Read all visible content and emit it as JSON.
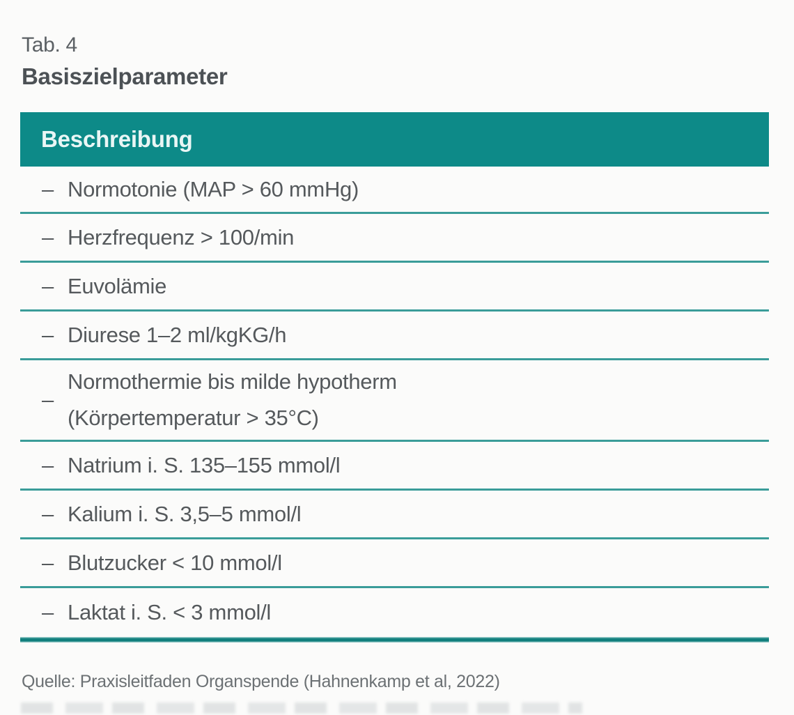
{
  "caption": {
    "label": "Tab. 4",
    "title": "Basiszielparameter"
  },
  "table": {
    "header": "Beschreibung",
    "bullet": "–",
    "rows": [
      {
        "lines": [
          "Normotonie (MAP > 60 mmHg)"
        ]
      },
      {
        "lines": [
          "Herzfrequenz > 100/min"
        ]
      },
      {
        "lines": [
          "Euvolämie"
        ]
      },
      {
        "lines": [
          "Diurese 1–2 ml/kgKG/h"
        ]
      },
      {
        "lines": [
          "Normothermie bis milde hypotherm",
          "(Körpertemperatur > 35°C)"
        ]
      },
      {
        "lines": [
          "Natrium i. S. 135–155 mmol/l"
        ]
      },
      {
        "lines": [
          "Kalium i. S. 3,5–5 mmol/l"
        ]
      },
      {
        "lines": [
          "Blutzucker < 10 mmol/l"
        ]
      },
      {
        "lines": [
          "Laktat i. S. < 3 mmol/l"
        ]
      }
    ]
  },
  "source": {
    "text": "Quelle: Praxisleitfaden Organspende (Hahnenkamp et al, 2022)"
  },
  "colors": {
    "header_teal": "#0d8a88",
    "separator_teal": "#3a9c99",
    "body_text": "#55595c",
    "header_text": "#e9f6f5",
    "background": "#fbfbfa"
  }
}
